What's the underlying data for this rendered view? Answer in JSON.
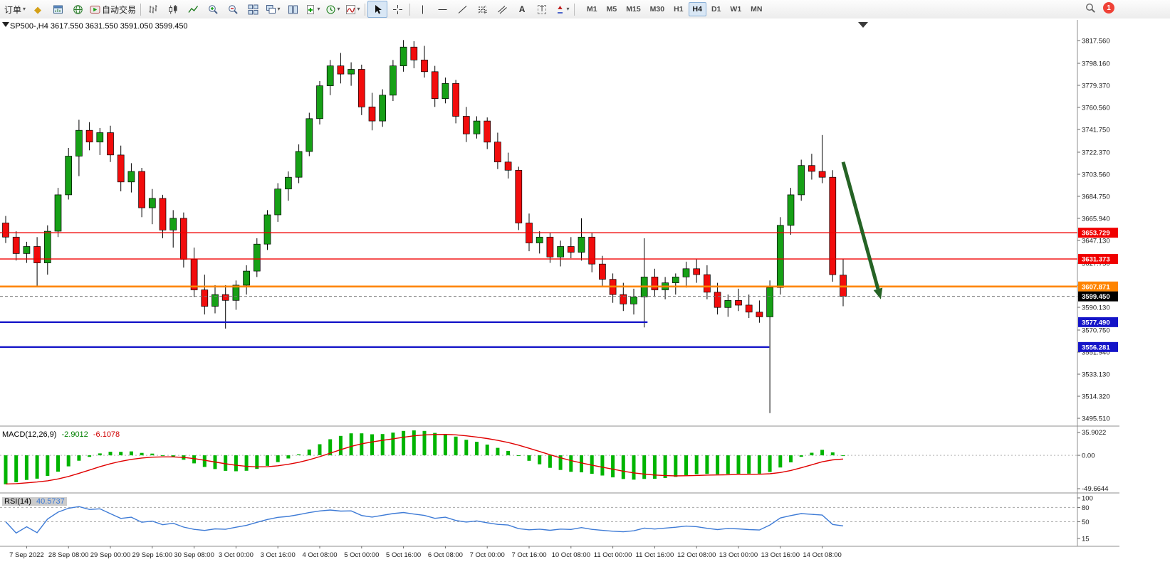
{
  "toolbar": {
    "orders_label": "订单",
    "autotrading_label": "自动交易",
    "timeframes": [
      "M1",
      "M5",
      "M15",
      "M30",
      "H1",
      "H4",
      "D1",
      "W1",
      "MN"
    ],
    "active_timeframe": "H4",
    "notification_count": "1"
  },
  "icons": {
    "caret": "▾",
    "diamond": "◆",
    "text_tool": "A",
    "label_tool": "T"
  },
  "chart_data": {
    "type": "candlestick",
    "symbol": "SP500-",
    "timeframe": "H4",
    "symbol_label": "SP500-,H4 3617.550 3631.550 3591.050 3599.450",
    "ohlc": {
      "open": "3617.550",
      "high": "3631.550",
      "low": "3591.050",
      "close": "3599.450"
    },
    "up_color": "#16a016",
    "down_color": "#f20c0c",
    "price_scale": {
      "min": 3495.51,
      "max": 3817.56,
      "labels": [
        "3817.560",
        "3798.160",
        "3779.370",
        "3760.560",
        "3741.750",
        "3722.370",
        "3703.560",
        "3684.750",
        "3665.940",
        "3647.130",
        "3627.750",
        "3608.940",
        "3590.130",
        "3570.750",
        "3551.940",
        "3533.130",
        "3514.320",
        "3495.510"
      ]
    },
    "candles": [
      [
        3662,
        3668,
        3645,
        3650
      ],
      [
        3650,
        3655,
        3630,
        3636
      ],
      [
        3636,
        3646,
        3628,
        3642
      ],
      [
        3642,
        3650,
        3608,
        3628
      ],
      [
        3628,
        3660,
        3618,
        3655
      ],
      [
        3655,
        3692,
        3650,
        3686
      ],
      [
        3686,
        3726,
        3682,
        3719
      ],
      [
        3719,
        3750,
        3702,
        3741
      ],
      [
        3741,
        3748,
        3724,
        3731
      ],
      [
        3731,
        3743,
        3720,
        3739
      ],
      [
        3739,
        3745,
        3714,
        3720
      ],
      [
        3720,
        3728,
        3689,
        3697
      ],
      [
        3697,
        3713,
        3688,
        3706
      ],
      [
        3706,
        3709,
        3667,
        3675
      ],
      [
        3675,
        3691,
        3661,
        3683
      ],
      [
        3683,
        3686,
        3649,
        3656
      ],
      [
        3656,
        3673,
        3641,
        3666
      ],
      [
        3666,
        3671,
        3624,
        3631
      ],
      [
        3631,
        3641,
        3599,
        3605
      ],
      [
        3605,
        3618,
        3584,
        3591
      ],
      [
        3591,
        3609,
        3585,
        3601
      ],
      [
        3601,
        3609,
        3572,
        3596
      ],
      [
        3596,
        3613,
        3588,
        3609
      ],
      [
        3609,
        3626,
        3601,
        3621
      ],
      [
        3621,
        3649,
        3616,
        3644
      ],
      [
        3644,
        3673,
        3639,
        3669
      ],
      [
        3669,
        3696,
        3663,
        3691
      ],
      [
        3691,
        3706,
        3681,
        3701
      ],
      [
        3701,
        3729,
        3696,
        3723
      ],
      [
        3723,
        3756,
        3719,
        3751
      ],
      [
        3751,
        3783,
        3746,
        3779
      ],
      [
        3779,
        3801,
        3771,
        3796
      ],
      [
        3796,
        3807,
        3781,
        3789
      ],
      [
        3789,
        3799,
        3779,
        3793
      ],
      [
        3793,
        3797,
        3754,
        3761
      ],
      [
        3761,
        3773,
        3741,
        3749
      ],
      [
        3749,
        3776,
        3744,
        3771
      ],
      [
        3771,
        3801,
        3766,
        3796
      ],
      [
        3796,
        3818,
        3791,
        3812
      ],
      [
        3812,
        3817,
        3794,
        3801
      ],
      [
        3801,
        3813,
        3786,
        3791
      ],
      [
        3791,
        3796,
        3761,
        3768
      ],
      [
        3768,
        3786,
        3764,
        3781
      ],
      [
        3781,
        3784,
        3747,
        3753
      ],
      [
        3753,
        3761,
        3731,
        3738
      ],
      [
        3738,
        3753,
        3734,
        3749
      ],
      [
        3749,
        3752,
        3725,
        3731
      ],
      [
        3731,
        3739,
        3708,
        3714
      ],
      [
        3714,
        3722,
        3700,
        3707
      ],
      [
        3707,
        3710,
        3656,
        3662
      ],
      [
        3662,
        3670,
        3638,
        3645
      ],
      [
        3645,
        3655,
        3636,
        3650
      ],
      [
        3650,
        3654,
        3628,
        3633
      ],
      [
        3633,
        3647,
        3625,
        3642
      ],
      [
        3642,
        3650,
        3632,
        3637
      ],
      [
        3637,
        3666,
        3630,
        3650
      ],
      [
        3650,
        3654,
        3620,
        3627
      ],
      [
        3627,
        3634,
        3608,
        3614
      ],
      [
        3614,
        3619,
        3594,
        3601
      ],
      [
        3601,
        3611,
        3587,
        3593
      ],
      [
        3593,
        3606,
        3584,
        3599
      ],
      [
        3599,
        3649,
        3573,
        3616
      ],
      [
        3616,
        3623,
        3599,
        3605
      ],
      [
        3605,
        3616,
        3597,
        3611
      ],
      [
        3611,
        3619,
        3601,
        3616
      ],
      [
        3616,
        3629,
        3607,
        3623
      ],
      [
        3623,
        3631,
        3611,
        3618
      ],
      [
        3618,
        3626,
        3597,
        3603
      ],
      [
        3603,
        3611,
        3584,
        3590
      ],
      [
        3590,
        3601,
        3582,
        3596
      ],
      [
        3596,
        3606,
        3587,
        3592
      ],
      [
        3592,
        3601,
        3581,
        3586
      ],
      [
        3586,
        3596,
        3577,
        3582
      ],
      [
        3582,
        3613,
        3500,
        3607
      ],
      [
        3607,
        3667,
        3601,
        3660
      ],
      [
        3660,
        3692,
        3652,
        3686
      ],
      [
        3686,
        3716,
        3681,
        3711
      ],
      [
        3711,
        3721,
        3699,
        3706
      ],
      [
        3706,
        3737,
        3696,
        3701
      ],
      [
        3701,
        3707,
        3612,
        3618
      ],
      [
        3617.55,
        3631.55,
        3591.05,
        3599.45
      ]
    ],
    "hlines": [
      {
        "price": 3653.729,
        "label": "3653.729",
        "color": "#f00000",
        "width": 1.4,
        "x_end": 1
      },
      {
        "price": 3631.373,
        "label": "3631.373",
        "color": "#f00000",
        "width": 1.4,
        "x_end": 1
      },
      {
        "price": 3607.871,
        "label": "3607.871",
        "color": "#ff8400",
        "width": 2.6,
        "x_end": 1
      },
      {
        "price": 3577.49,
        "label": "3577.490",
        "color": "#1414c8",
        "width": 2.2,
        "x_end": 0.601
      },
      {
        "price": 3556.281,
        "label": "3556.281",
        "color": "#1414c8",
        "width": 2.2,
        "x_end": 0.714
      }
    ],
    "current_price": {
      "value": 3599.45,
      "label": "3599.450"
    },
    "arrow": {
      "x1_index": 80,
      "price1": 3714,
      "x2_index": 83.6,
      "price2": 3597,
      "color": "#256325"
    },
    "time_labels": [
      "7 Sep 2022",
      "28 Sep 08:00",
      "29 Sep 00:00",
      "29 Sep 16:00",
      "30 Sep 08:00",
      "3 Oct 00:00",
      "3 Oct 16:00",
      "4 Oct 08:00",
      "5 Oct 00:00",
      "5 Oct 16:00",
      "6 Oct 08:00",
      "7 Oct 00:00",
      "7 Oct 16:00",
      "10 Oct 08:00",
      "11 Oct 00:00",
      "11 Oct 16:00",
      "12 Oct 08:00",
      "13 Oct 00:00",
      "13 Oct 16:00",
      "14 Oct 08:00"
    ],
    "macd": {
      "label": "MACD(12,26,9)",
      "main_value": "-2.9012",
      "signal_value": "-6.1078",
      "scale_labels": [
        "35.9022",
        "0.00",
        "-49.6644"
      ],
      "histogram_color": "#00b400",
      "signal_color": "#e00000"
    },
    "rsi": {
      "label": "RSI(14)",
      "value": "40.5737",
      "scale_labels": [
        "100",
        "80",
        "50",
        "15"
      ],
      "levels": [
        80,
        50
      ],
      "line_color": "#3e7bd6"
    }
  }
}
